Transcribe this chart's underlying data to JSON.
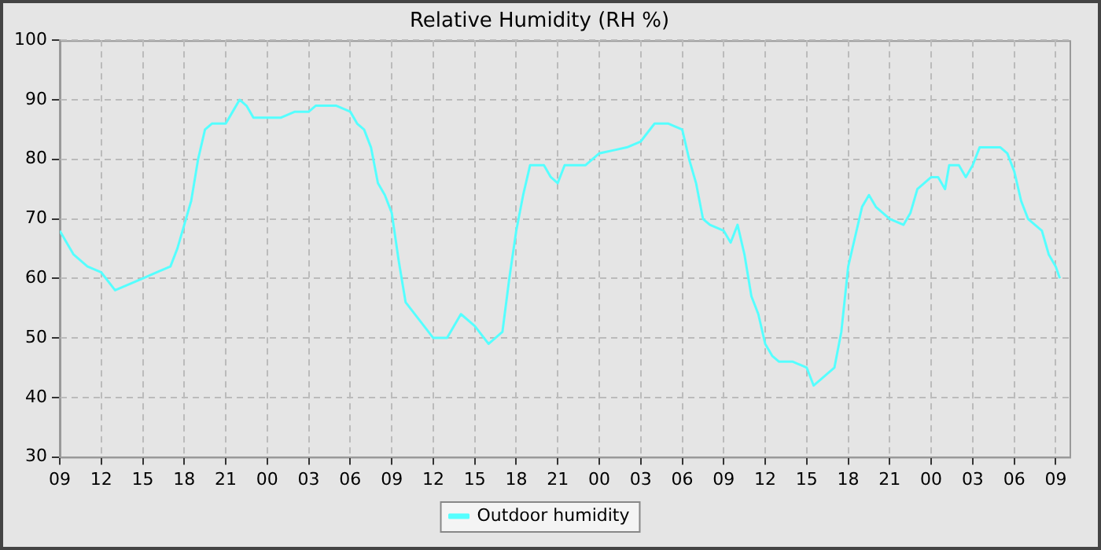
{
  "chart_data": {
    "type": "line",
    "title": "Relative Humidity (RH %)",
    "xlim": [
      9,
      82
    ],
    "xticks": [
      {
        "value": 9,
        "label": "09"
      },
      {
        "value": 12,
        "label": "12"
      },
      {
        "value": 15,
        "label": "15"
      },
      {
        "value": 18,
        "label": "18"
      },
      {
        "value": 21,
        "label": "21"
      },
      {
        "value": 24,
        "label": "00"
      },
      {
        "value": 27,
        "label": "03"
      },
      {
        "value": 30,
        "label": "06"
      },
      {
        "value": 33,
        "label": "09"
      },
      {
        "value": 36,
        "label": "12"
      },
      {
        "value": 39,
        "label": "15"
      },
      {
        "value": 42,
        "label": "18"
      },
      {
        "value": 45,
        "label": "21"
      },
      {
        "value": 48,
        "label": "00"
      },
      {
        "value": 51,
        "label": "03"
      },
      {
        "value": 54,
        "label": "06"
      },
      {
        "value": 57,
        "label": "09"
      },
      {
        "value": 60,
        "label": "12"
      },
      {
        "value": 63,
        "label": "15"
      },
      {
        "value": 66,
        "label": "18"
      },
      {
        "value": 69,
        "label": "21"
      },
      {
        "value": 72,
        "label": "00"
      },
      {
        "value": 75,
        "label": "03"
      },
      {
        "value": 78,
        "label": "06"
      },
      {
        "value": 81,
        "label": "09"
      }
    ],
    "ylim": [
      30,
      100
    ],
    "yticks": [
      30,
      40,
      50,
      60,
      70,
      80,
      90,
      100
    ],
    "grid": true,
    "legend": "bottom",
    "marker": "none",
    "line_style": "solid",
    "series": [
      {
        "name": "Outdoor humidity",
        "color": "#55ffff",
        "x": [
          9,
          10,
          11,
          12,
          13,
          14,
          15,
          16,
          17,
          17.5,
          18,
          18.5,
          19,
          19.5,
          20,
          21,
          21.5,
          22,
          22.5,
          23,
          24,
          25,
          26,
          27,
          27.5,
          28,
          29,
          30,
          30.5,
          31,
          31.5,
          32,
          32.5,
          33,
          33.5,
          34,
          35,
          36,
          37,
          38,
          39,
          40,
          41,
          41.5,
          42,
          42.5,
          43,
          44,
          44.5,
          45,
          45.5,
          46,
          47,
          48,
          49,
          50,
          51,
          52,
          53,
          54,
          54.5,
          55,
          55.5,
          56,
          57,
          57.5,
          58,
          58.5,
          59,
          59.5,
          60,
          60.5,
          61,
          62,
          63,
          63.5,
          64,
          65,
          65.5,
          66,
          66.5,
          67,
          67.5,
          68,
          69,
          70,
          70.5,
          71,
          72,
          72.5,
          73,
          73.3,
          74,
          74.5,
          75,
          75.5,
          76,
          77,
          77.5,
          78,
          78.5,
          79,
          80,
          80.5,
          81,
          81.3
        ],
        "values": [
          68,
          64,
          62,
          61,
          58,
          59,
          60,
          61,
          62,
          65,
          69,
          73,
          80,
          85,
          86,
          86,
          88,
          90,
          89,
          87,
          87,
          87,
          88,
          88,
          89,
          89,
          89,
          88,
          86,
          85,
          82,
          76,
          74,
          71,
          63,
          56,
          53,
          50,
          50,
          54,
          52,
          49,
          51,
          60,
          68,
          74,
          79,
          79,
          77,
          76,
          79,
          79,
          79,
          81,
          81.5,
          82,
          83,
          86,
          86,
          85,
          80,
          76,
          70,
          69,
          68,
          66,
          69,
          64,
          57,
          54,
          49,
          47,
          46,
          46,
          45,
          42,
          43,
          45,
          51,
          62,
          67,
          72,
          74,
          72,
          70,
          69,
          71,
          75,
          77,
          77,
          75,
          79,
          79,
          77,
          79,
          82,
          82,
          82,
          81,
          78,
          73,
          70,
          68,
          64,
          62,
          60
        ]
      }
    ]
  }
}
